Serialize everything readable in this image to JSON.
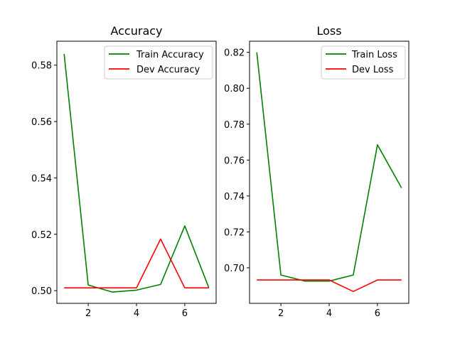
{
  "chart_data": [
    {
      "type": "line",
      "title": "Accuracy",
      "xlabel": "",
      "ylabel": "",
      "x": [
        1,
        2,
        3,
        4,
        5,
        6,
        7
      ],
      "xlim": [
        0.7,
        7.3
      ],
      "ylim": [
        0.4955,
        0.5885
      ],
      "xticks": [
        2,
        4,
        6
      ],
      "xtick_labels": [
        "2",
        "4",
        "6"
      ],
      "yticks": [
        0.5,
        0.52,
        0.54,
        0.56,
        0.58
      ],
      "ytick_labels": [
        "0.50",
        "0.52",
        "0.54",
        "0.56",
        "0.58"
      ],
      "grid": false,
      "legend_position": "top-right",
      "series": [
        {
          "name": "Train Accuracy",
          "color": "#008000",
          "values": [
            0.584,
            0.502,
            0.4995,
            0.5002,
            0.5022,
            0.523,
            0.501
          ]
        },
        {
          "name": "Dev Accuracy",
          "color": "#ff0000",
          "values": [
            0.501,
            0.501,
            0.501,
            0.501,
            0.5183,
            0.501,
            0.501
          ]
        }
      ]
    },
    {
      "type": "line",
      "title": "Loss",
      "xlabel": "",
      "ylabel": "",
      "x": [
        1,
        2,
        3,
        4,
        5,
        6,
        7
      ],
      "xlim": [
        0.7,
        7.3
      ],
      "ylim": [
        0.6802,
        0.8262
      ],
      "xticks": [
        2,
        4,
        6
      ],
      "xtick_labels": [
        "2",
        "4",
        "6"
      ],
      "yticks": [
        0.7,
        0.72,
        0.74,
        0.76,
        0.78,
        0.8,
        0.82
      ],
      "ytick_labels": [
        "0.70",
        "0.72",
        "0.74",
        "0.76",
        "0.78",
        "0.80",
        "0.82"
      ],
      "grid": false,
      "legend_position": "top-right",
      "series": [
        {
          "name": "Train Loss",
          "color": "#008000",
          "values": [
            0.82,
            0.696,
            0.6926,
            0.6926,
            0.696,
            0.7685,
            0.7445
          ]
        },
        {
          "name": "Dev Loss",
          "color": "#ff0000",
          "values": [
            0.6932,
            0.6932,
            0.6932,
            0.6932,
            0.6868,
            0.6932,
            0.6932
          ]
        }
      ]
    }
  ]
}
